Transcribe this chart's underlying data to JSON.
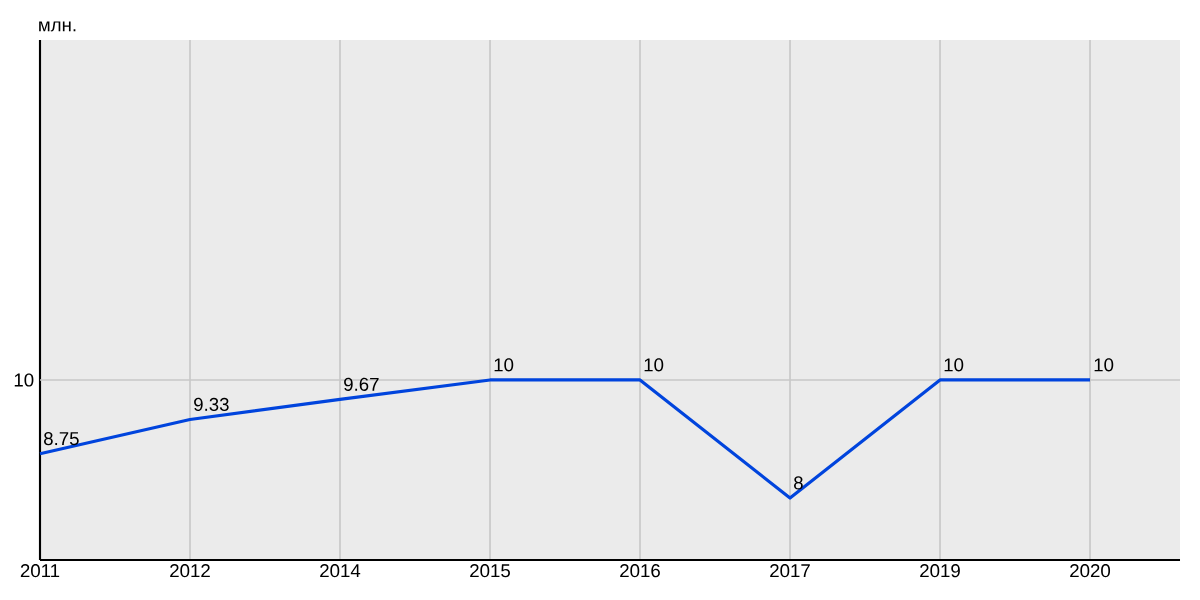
{
  "chart_data": {
    "type": "line",
    "ylim": [
      6.95,
      15.76
    ],
    "categories": [
      "2011",
      "2012",
      "2014",
      "2015",
      "2016",
      "2017",
      "2019",
      "2020"
    ],
    "series": [
      {
        "color": "#0044dd",
        "values": [
          8.75,
          9.33,
          9.67,
          10,
          10,
          8,
          10,
          10
        ]
      }
    ],
    "annotations": [
      "млн.",
      "10"
    ],
    "grid": true,
    "data_labels": true,
    "marker": "none",
    "line_style": "solid"
  }
}
